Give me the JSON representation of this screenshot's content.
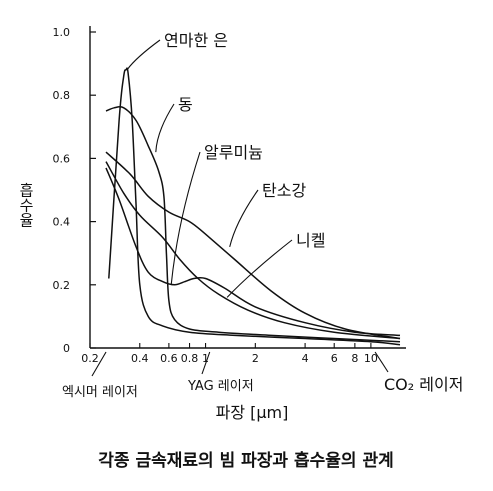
{
  "chart_data": {
    "type": "line",
    "title": "각종 금속재료의 빔 파장과 흡수율의 관계",
    "xlabel": "파장 [μm]",
    "ylabel": "흡수율",
    "xscale": "log",
    "xlim": [
      0.2,
      15
    ],
    "ylim": [
      0,
      1.0
    ],
    "grid": false,
    "x_ticks": [
      {
        "value": 0.2,
        "label": "0.2"
      },
      {
        "value": 0.4,
        "label": "0.4"
      },
      {
        "value": 0.6,
        "label": "0.6"
      },
      {
        "value": 0.8,
        "label": "0.8"
      },
      {
        "value": 1,
        "label": "1"
      },
      {
        "value": 2,
        "label": "2"
      },
      {
        "value": 4,
        "label": "4"
      },
      {
        "value": 6,
        "label": "6"
      },
      {
        "value": 8,
        "label": "8"
      },
      {
        "value": 10,
        "label": "10"
      }
    ],
    "y_ticks": [
      {
        "value": 0,
        "label": "0"
      },
      {
        "value": 0.2,
        "label": "0.2"
      },
      {
        "value": 0.4,
        "label": "0.4"
      },
      {
        "value": 0.6,
        "label": "0.6"
      },
      {
        "value": 0.8,
        "label": "0.8"
      },
      {
        "value": 1.0,
        "label": "1.0"
      }
    ],
    "series": [
      {
        "name": "연마한 은",
        "x": [
          0.26,
          0.3,
          0.32,
          0.33,
          0.34,
          0.36,
          0.38,
          0.4,
          0.45,
          0.55,
          0.8,
          1.5,
          4,
          10,
          15
        ],
        "y": [
          0.22,
          0.72,
          0.86,
          0.88,
          0.87,
          0.72,
          0.45,
          0.2,
          0.1,
          0.07,
          0.05,
          0.04,
          0.03,
          0.02,
          0.01
        ]
      },
      {
        "name": "동",
        "x": [
          0.25,
          0.28,
          0.32,
          0.38,
          0.45,
          0.52,
          0.56,
          0.58,
          0.6,
          0.65,
          0.8,
          1.2,
          2.5,
          6,
          15
        ],
        "y": [
          0.75,
          0.76,
          0.76,
          0.72,
          0.64,
          0.56,
          0.48,
          0.3,
          0.15,
          0.09,
          0.06,
          0.05,
          0.04,
          0.03,
          0.02
        ]
      },
      {
        "name": "알루미늄",
        "x": [
          0.25,
          0.3,
          0.38,
          0.45,
          0.55,
          0.65,
          0.75,
          0.85,
          1.0,
          1.3,
          2.0,
          4,
          8,
          15
        ],
        "y": [
          0.57,
          0.47,
          0.32,
          0.24,
          0.21,
          0.2,
          0.21,
          0.22,
          0.22,
          0.19,
          0.13,
          0.08,
          0.05,
          0.04
        ]
      },
      {
        "name": "탄소강",
        "x": [
          0.25,
          0.35,
          0.45,
          0.6,
          0.8,
          1.0,
          1.5,
          2.5,
          4,
          7,
          15
        ],
        "y": [
          0.62,
          0.55,
          0.48,
          0.43,
          0.4,
          0.36,
          0.28,
          0.18,
          0.11,
          0.06,
          0.03
        ]
      },
      {
        "name": "니켈",
        "x": [
          0.25,
          0.32,
          0.4,
          0.55,
          0.7,
          0.9,
          1.2,
          1.8,
          3,
          6,
          15
        ],
        "y": [
          0.59,
          0.49,
          0.42,
          0.35,
          0.28,
          0.22,
          0.17,
          0.12,
          0.08,
          0.05,
          0.03
        ]
      }
    ],
    "annotations": [
      {
        "text": "엑시머 레이저",
        "x": 0.25
      },
      {
        "text": "YAG 레이저",
        "x": 1.06
      },
      {
        "text": "CO₂ 레이저",
        "x": 10.6
      }
    ]
  }
}
